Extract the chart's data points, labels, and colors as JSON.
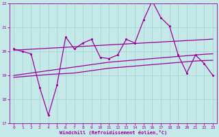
{
  "xlabel": "Windchill (Refroidissement éolien,°C)",
  "bg_color": "#c5e8e8",
  "grid_color": "#a8d4d4",
  "line_color": "#990099",
  "x": [
    0,
    1,
    2,
    3,
    4,
    5,
    6,
    7,
    8,
    9,
    10,
    11,
    12,
    13,
    14,
    15,
    16,
    17,
    18,
    19,
    20,
    21,
    22,
    23
  ],
  "y_main": [
    20.1,
    20.0,
    19.9,
    18.5,
    17.35,
    18.6,
    20.6,
    20.1,
    20.35,
    20.5,
    19.75,
    19.7,
    19.85,
    20.5,
    20.35,
    21.3,
    22.1,
    21.4,
    21.05,
    19.85,
    19.1,
    19.85,
    19.5,
    19.0
  ],
  "y_upper": [
    20.05,
    20.07,
    20.09,
    20.11,
    20.13,
    20.15,
    20.17,
    20.19,
    20.21,
    20.23,
    20.25,
    20.27,
    20.29,
    20.31,
    20.33,
    20.35,
    20.37,
    20.39,
    20.41,
    20.43,
    20.45,
    20.47,
    20.49,
    20.51
  ],
  "y_mid": [
    19.0,
    19.05,
    19.1,
    19.15,
    19.2,
    19.25,
    19.3,
    19.35,
    19.4,
    19.45,
    19.5,
    19.55,
    19.58,
    19.61,
    19.64,
    19.67,
    19.7,
    19.73,
    19.76,
    19.79,
    19.82,
    19.85,
    19.88,
    19.9
  ],
  "y_lower": [
    18.92,
    18.95,
    18.98,
    19.01,
    19.04,
    19.06,
    19.08,
    19.1,
    19.15,
    19.2,
    19.25,
    19.3,
    19.33,
    19.36,
    19.39,
    19.42,
    19.45,
    19.48,
    19.51,
    19.54,
    19.57,
    19.6,
    19.62,
    19.63
  ],
  "ylim": [
    17,
    22
  ],
  "xlim": [
    -0.5,
    23.5
  ],
  "yticks": [
    17,
    18,
    19,
    20,
    21,
    22
  ],
  "xticks": [
    0,
    1,
    2,
    3,
    4,
    5,
    6,
    7,
    8,
    9,
    10,
    11,
    12,
    13,
    14,
    15,
    16,
    17,
    18,
    19,
    20,
    21,
    22,
    23
  ]
}
